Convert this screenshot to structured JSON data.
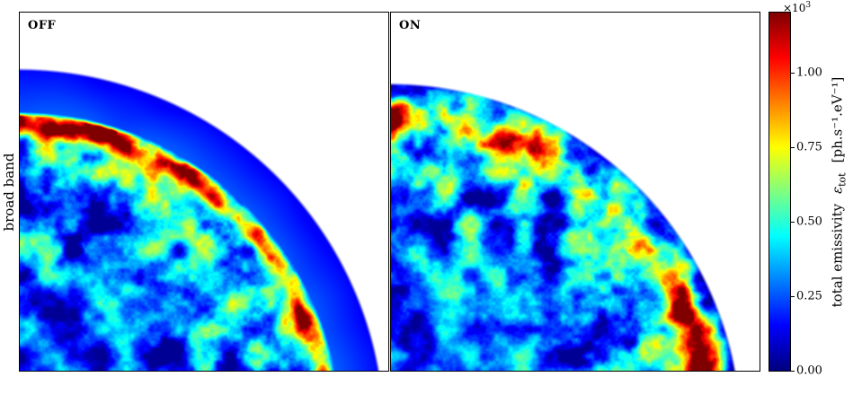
{
  "figure": {
    "ylabel": "broad band",
    "panels": [
      {
        "label": "OFF"
      },
      {
        "label": "ON"
      }
    ],
    "colorbar": {
      "multiplier_base": "×10",
      "multiplier_exp": "3",
      "ticks": [
        "0.00",
        "0.25",
        "0.50",
        "0.75",
        "1.00"
      ],
      "label_text": "total emissivity",
      "label_symbol": "ε",
      "label_symbol_sub": "tot",
      "label_units": "[ph.s⁻¹.eV⁻¹]"
    }
  },
  "chart_data": {
    "type": "heatmap",
    "title": "",
    "ylabel": "broad band",
    "colormap": "jet",
    "colorbar_label": "total emissivity ε_tot [ph.s⁻¹.eV⁻¹]",
    "scale_multiplier": "×10³",
    "vmin": 0.0,
    "vmax": 1.2,
    "ticks": [
      0.0,
      0.25,
      0.5,
      0.75,
      1.0
    ],
    "units": "ph.s⁻¹.eV⁻¹",
    "panels": [
      {
        "label": "OFF",
        "geometry": "quarter disk centered at lower-left, radius ~= panel height",
        "description": "Turbulent low-emissivity interior (~0.05–0.5 ×10³ ph.s⁻¹.eV⁻¹, blue to green clumps) surrounded by a bright clumpy emission rim at ~0.85 R peaking at ~1.0–1.2 ×10³ (orange/red), then a smooth faint blue outer shell (~0.1–0.25 ×10³) extending to the outer edge R."
      },
      {
        "label": "ON",
        "geometry": "quarter disk centered at lower-left, radius ~4% smaller than OFF panel",
        "description": "Turbulent low-emissivity interior (~0.05–0.5 ×10³, blue to green clumps) with a moderate clumpy rim at ~0.9 R reaching ~0.5–0.9 ×10³ (green/yellow, few orange spots) that extends to the outer edge; no smooth outer shell."
      }
    ]
  }
}
